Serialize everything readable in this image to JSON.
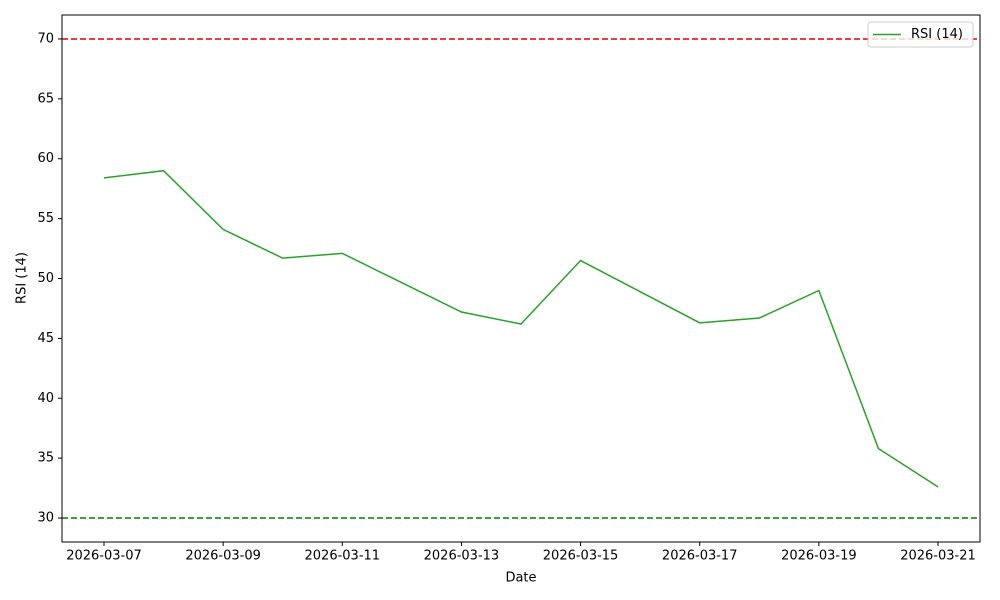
{
  "chart_data": {
    "type": "line",
    "xlabel": "Date",
    "ylabel": "RSI (14)",
    "x": [
      "2026-03-07",
      "2026-03-08",
      "2026-03-09",
      "2026-03-10",
      "2026-03-11",
      "2026-03-12",
      "2026-03-13",
      "2026-03-14",
      "2026-03-15",
      "2026-03-16",
      "2026-03-17",
      "2026-03-18",
      "2026-03-19",
      "2026-03-20",
      "2026-03-21"
    ],
    "series": [
      {
        "name": "RSI (14)",
        "color": "#2ca02c",
        "values": [
          58.4,
          59.0,
          54.1,
          51.7,
          52.1,
          49.65,
          47.2,
          46.2,
          51.5,
          48.9,
          46.3,
          46.7,
          49.0,
          35.8,
          32.6
        ]
      }
    ],
    "hlines": [
      {
        "value": 70,
        "color": "#e00000"
      },
      {
        "value": 30,
        "color": "#008000"
      }
    ],
    "xlim": [
      "2026-03-06T07:05:00Z",
      "2026-03-21T16:55:00Z"
    ],
    "xticks": [
      "2026-03-07",
      "2026-03-09",
      "2026-03-11",
      "2026-03-13",
      "2026-03-15",
      "2026-03-17",
      "2026-03-19",
      "2026-03-21"
    ],
    "ylim": [
      28,
      72
    ],
    "yticks": [
      30,
      35,
      40,
      45,
      50,
      55,
      60,
      65,
      70
    ],
    "grid": false,
    "legend": "upper right"
  }
}
